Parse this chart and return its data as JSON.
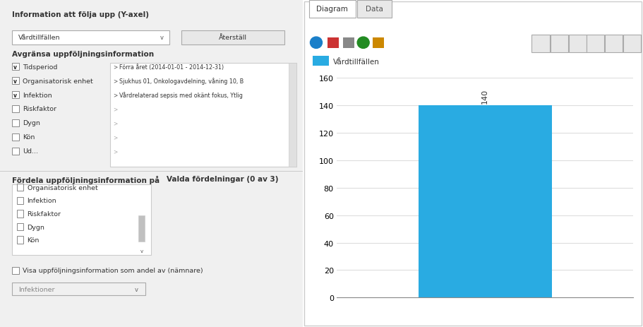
{
  "bar_value": 140,
  "bar_color": "#29ABE2",
  "bar_label": "140",
  "legend_label": "Vårdtillfällen",
  "ylim": [
    0,
    160
  ],
  "yticks": [
    0,
    20,
    40,
    60,
    80,
    100,
    120,
    140,
    160
  ],
  "background_color": "#ffffff",
  "grid_color": "#dddddd",
  "tab_diagram": "Diagram",
  "tab_data": "Data",
  "left_title1": "Information att följa upp (Y-axel)",
  "left_dropdown": "Vårdtillfällen",
  "left_button": "Återställ",
  "left_title2": "Avgränsa uppföljningsinformation",
  "left_cb1": "Tidsperiod",
  "left_cb2": "Organisatorisk enhet",
  "left_cb3": "Infektion",
  "left_cb4": "Riskfaktor",
  "left_cb5": "Dygn",
  "left_cb6": "Kön",
  "left_filter1": "Förra året (2014-01-01 - 2014-12-31)",
  "left_filter2": "Sjukhus 01, Onkologavdelning, våning 10, B",
  "left_filter3": "Vårdrelaterad sepsis med okänt fokus, Ytlig",
  "left_title3": "Fördela uppföljningsinformation på",
  "left_title4": "Valda fördelningar (0 av 3)",
  "left_cb7": "Organisatorisk enhet",
  "left_cb8": "Infektion",
  "left_cb9": "Riskfaktor",
  "left_cb10": "Dygn",
  "left_cb11": "Kön",
  "left_cb12": "Visa uppföljningsinformation som andel av (nämnare)",
  "left_dropdown2": "Infektioner"
}
